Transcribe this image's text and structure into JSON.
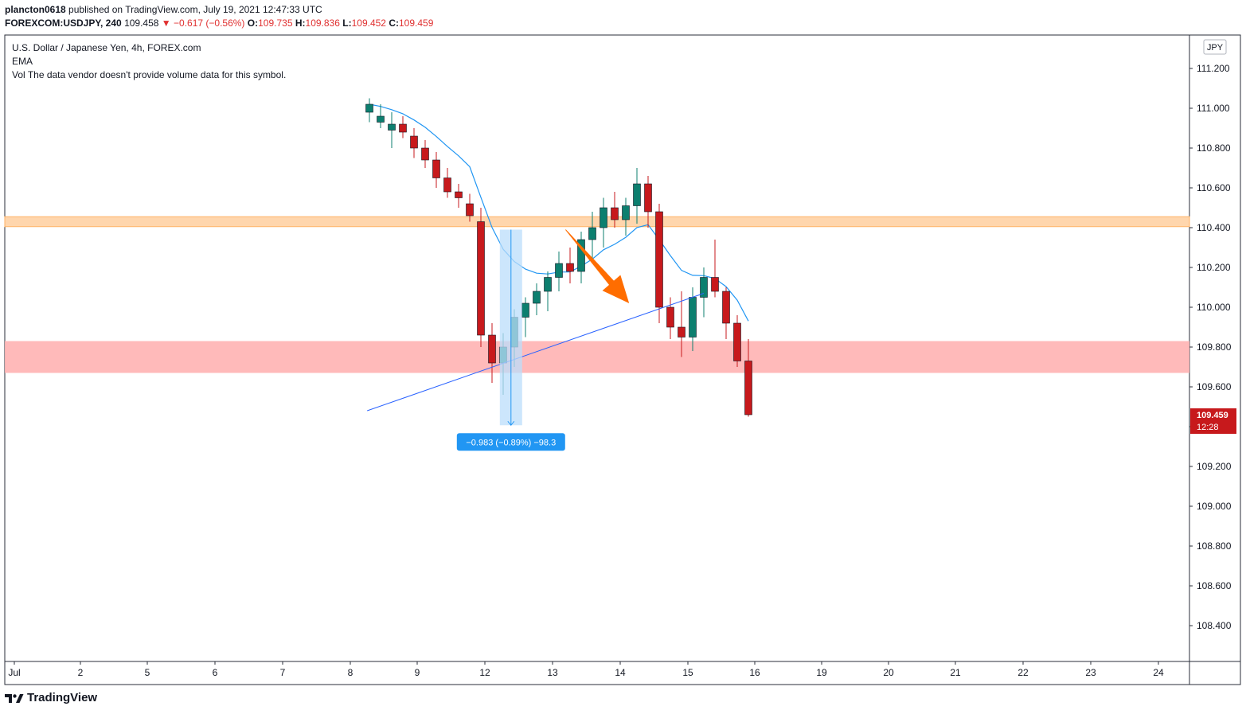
{
  "header": {
    "author": "plancton0618",
    "published_text": "published on TradingView.com, July 19, 2021 12:47:33 UTC",
    "symbol": "FOREXCOM:USDJPY, 240",
    "last": "109.458",
    "change_arrow": "▼",
    "change": "−0.617 (−0.56%)",
    "o_label": "O:",
    "o_value": "109.735",
    "h_label": "H:",
    "h_value": "109.836",
    "l_label": "L:",
    "l_value": "109.452",
    "c_label": "C:",
    "c_value": "109.459"
  },
  "legend": {
    "series_title": "U.S. Dollar / Japanese Yen, 4h, FOREX.com",
    "indicator": "EMA",
    "volume_label": "Vol",
    "volume_note": "The data vendor doesn't provide volume data for this symbol."
  },
  "footer": {
    "brand": "TradingView"
  },
  "chart_data": {
    "type": "candlestick",
    "currency_label": "JPY",
    "price_ticks": [
      "111.200",
      "111.000",
      "110.800",
      "110.600",
      "110.400",
      "110.200",
      "110.000",
      "109.800",
      "109.600",
      "109.400",
      "109.200",
      "109.000",
      "108.800",
      "108.600",
      "108.400"
    ],
    "date_ticks": [
      "Jul",
      "2",
      "5",
      "6",
      "7",
      "8",
      "9",
      "12",
      "13",
      "14",
      "15",
      "16",
      "19",
      "20",
      "21",
      "22",
      "23",
      "24"
    ],
    "ylim": [
      108.22,
      111.35
    ],
    "last_price_label": "109.459",
    "countdown_label": "12:28",
    "measure_label": "−0.983 (−0.89%) −98.3",
    "measure": {
      "from": 110.39,
      "to": 109.407,
      "index": 12.7
    },
    "resistance_zone": [
      110.405,
      110.455
    ],
    "support_zone": [
      109.67,
      109.83
    ],
    "trendline": {
      "from": {
        "index": -0.2,
        "price": 109.48
      },
      "to": {
        "index": 30.0,
        "price": 110.07
      }
    },
    "colors": {
      "up": "#0c7f6f",
      "down": "#c7191c",
      "ema": "#2196f3",
      "resistance": "#ffcc99",
      "support": "#ffb3b3",
      "measure": "#2196f3",
      "arrow": "#ff6d00"
    },
    "candles": [
      {
        "o": 110.98,
        "h": 111.05,
        "l": 110.93,
        "c": 111.02
      },
      {
        "o": 110.93,
        "h": 111.02,
        "l": 110.9,
        "c": 110.96
      },
      {
        "o": 110.89,
        "h": 110.98,
        "l": 110.8,
        "c": 110.92
      },
      {
        "o": 110.92,
        "h": 110.96,
        "l": 110.85,
        "c": 110.88
      },
      {
        "o": 110.86,
        "h": 110.9,
        "l": 110.75,
        "c": 110.8
      },
      {
        "o": 110.8,
        "h": 110.84,
        "l": 110.7,
        "c": 110.74
      },
      {
        "o": 110.74,
        "h": 110.78,
        "l": 110.6,
        "c": 110.65
      },
      {
        "o": 110.65,
        "h": 110.7,
        "l": 110.55,
        "c": 110.58
      },
      {
        "o": 110.58,
        "h": 110.62,
        "l": 110.5,
        "c": 110.55
      },
      {
        "o": 110.52,
        "h": 110.57,
        "l": 110.43,
        "c": 110.46
      },
      {
        "o": 110.43,
        "h": 110.5,
        "l": 109.8,
        "c": 109.86
      },
      {
        "o": 109.86,
        "h": 109.92,
        "l": 109.62,
        "c": 109.72
      },
      {
        "o": 109.72,
        "h": 109.87,
        "l": 109.56,
        "c": 109.8
      },
      {
        "o": 109.8,
        "h": 109.99,
        "l": 109.7,
        "c": 109.95
      },
      {
        "o": 109.95,
        "h": 110.05,
        "l": 109.85,
        "c": 110.02
      },
      {
        "o": 110.02,
        "h": 110.12,
        "l": 109.96,
        "c": 110.08
      },
      {
        "o": 110.08,
        "h": 110.18,
        "l": 109.98,
        "c": 110.15
      },
      {
        "o": 110.15,
        "h": 110.28,
        "l": 110.08,
        "c": 110.22
      },
      {
        "o": 110.22,
        "h": 110.3,
        "l": 110.12,
        "c": 110.18
      },
      {
        "o": 110.18,
        "h": 110.38,
        "l": 110.12,
        "c": 110.34
      },
      {
        "o": 110.34,
        "h": 110.48,
        "l": 110.22,
        "c": 110.4
      },
      {
        "o": 110.4,
        "h": 110.55,
        "l": 110.3,
        "c": 110.5
      },
      {
        "o": 110.5,
        "h": 110.58,
        "l": 110.4,
        "c": 110.44
      },
      {
        "o": 110.44,
        "h": 110.55,
        "l": 110.36,
        "c": 110.51
      },
      {
        "o": 110.51,
        "h": 110.7,
        "l": 110.42,
        "c": 110.62
      },
      {
        "o": 110.62,
        "h": 110.66,
        "l": 110.4,
        "c": 110.48
      },
      {
        "o": 110.48,
        "h": 110.52,
        "l": 109.92,
        "c": 110.0
      },
      {
        "o": 110.0,
        "h": 110.05,
        "l": 109.84,
        "c": 109.9
      },
      {
        "o": 109.9,
        "h": 110.08,
        "l": 109.75,
        "c": 109.85
      },
      {
        "o": 109.85,
        "h": 110.1,
        "l": 109.78,
        "c": 110.05
      },
      {
        "o": 110.05,
        "h": 110.2,
        "l": 109.95,
        "c": 110.15
      },
      {
        "o": 110.15,
        "h": 110.34,
        "l": 110.05,
        "c": 110.08
      },
      {
        "o": 110.08,
        "h": 110.1,
        "l": 109.84,
        "c": 109.92
      },
      {
        "o": 109.92,
        "h": 109.96,
        "l": 109.7,
        "c": 109.73
      },
      {
        "o": 109.73,
        "h": 109.84,
        "l": 109.45,
        "c": 109.46
      }
    ]
  }
}
